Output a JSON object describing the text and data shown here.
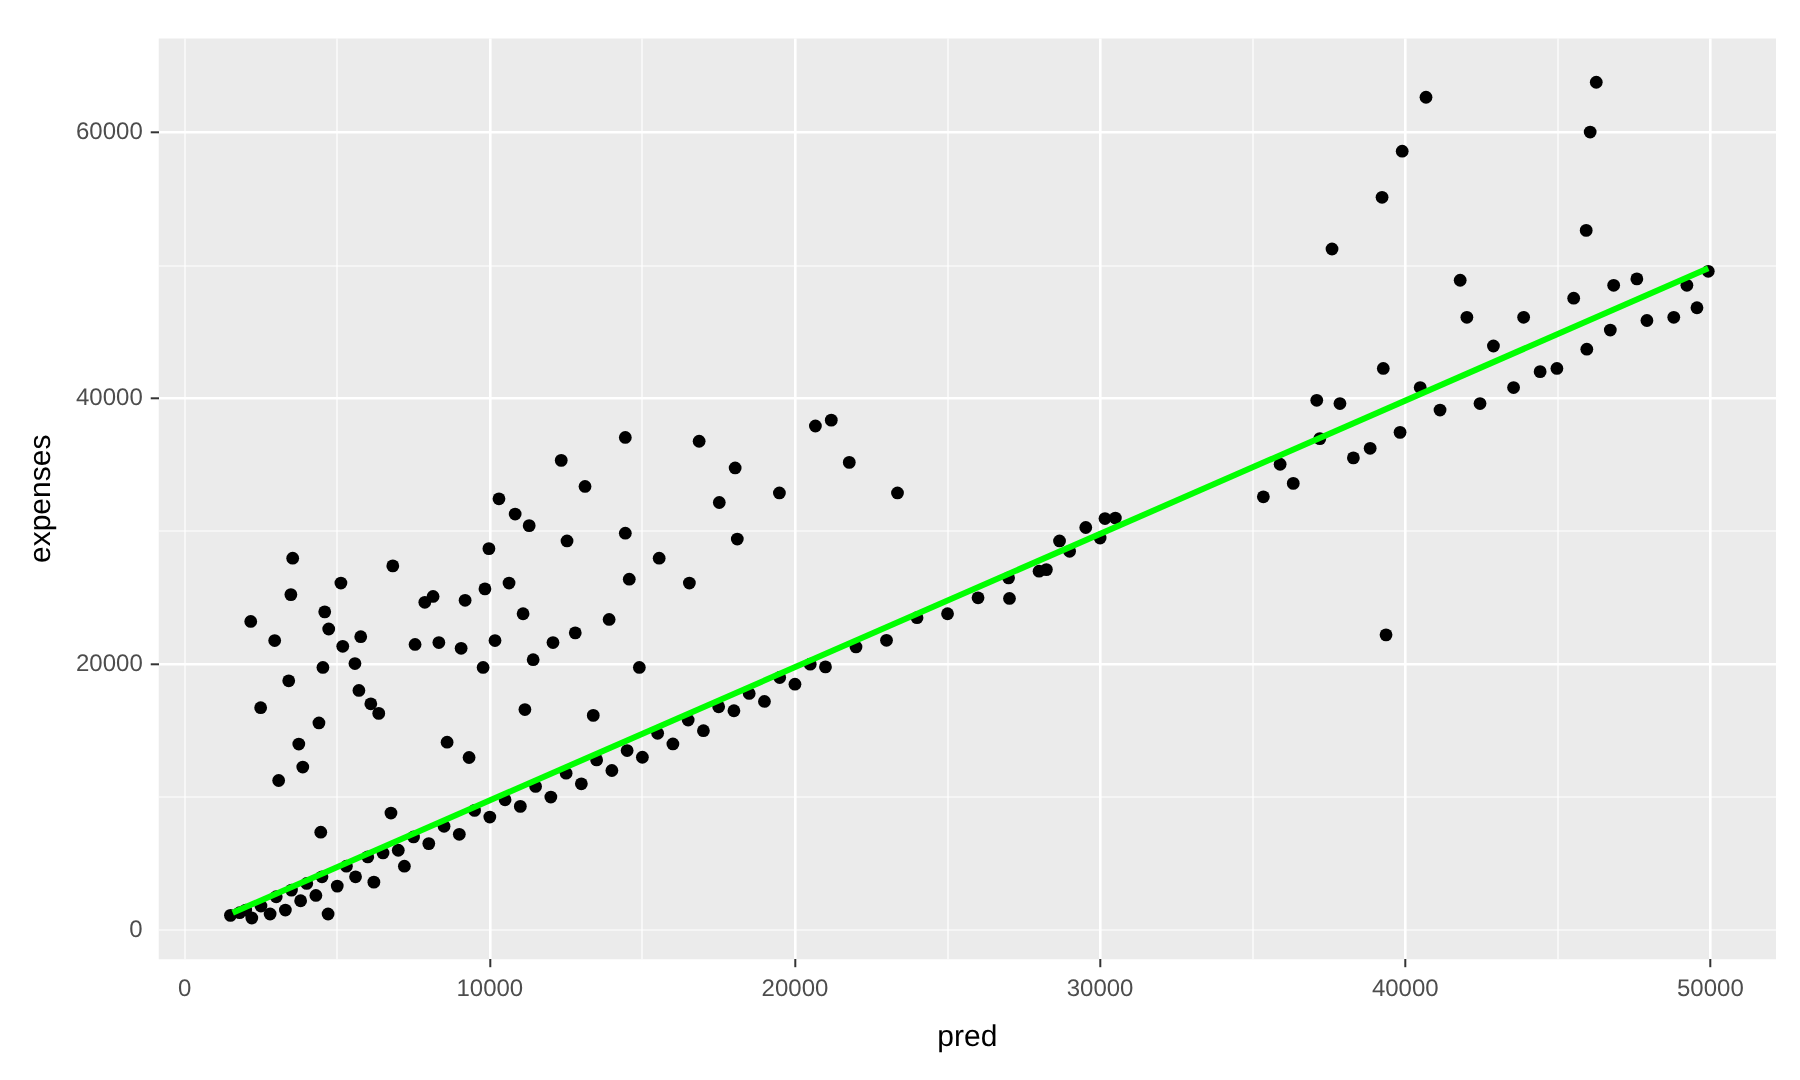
{
  "chart_data": {
    "type": "scatter",
    "xlabel": "pred",
    "ylabel": "expenses",
    "xlim": [
      -850,
      52150
    ],
    "ylim": [
      -2200,
      67100
    ],
    "xticks": [
      0,
      {
        "value": 5000,
        "label": null
      },
      10000,
      {
        "value": 15000,
        "label": null
      },
      20000,
      {
        "value": 25000,
        "label": null
      },
      30000,
      {
        "value": 35000,
        "label": null
      },
      40000,
      {
        "value": 45000,
        "label": null
      },
      50000
    ],
    "yticks": [
      0,
      {
        "value": 10000,
        "label": null
      },
      20000,
      {
        "value": 30000,
        "label": null
      },
      40000,
      {
        "value": 50000,
        "label": null
      },
      60000
    ],
    "grid": true,
    "series": [
      {
        "marker": "circle",
        "color": "#000000",
        "x": [
          2165,
          2490,
          2950,
          3080,
          3410,
          3480,
          3540,
          3740,
          3870,
          4400,
          4460,
          4590,
          4530,
          4720,
          5180,
          5120,
          5580,
          5770,
          5710,
          6100,
          6360,
          6760,
          6820,
          7550,
          7870,
          8140,
          8330,
          8600,
          9190,
          9060,
          9320,
          9840,
          9970,
          9780,
          10170,
          10300,
          10830,
          10630,
          11290,
          11090,
          11420,
          11150,
          12070,
          12340,
          12530,
          12800,
          13120,
          13390,
          13910,
          14440,
          14440,
          14570,
          14900,
          15550,
          16540,
          16860,
          17520,
          18040,
          18110,
          19490,
          20670,
          21190,
          21780,
          23360,
          40680,
          39900,
          39240,
          37600,
          46260,
          46060,
          45930,
          39370,
          41800,
          1500,
          1800,
          2000,
          2200,
          2500,
          2800,
          3000,
          3300,
          3500,
          3800,
          4000,
          4300,
          4700,
          4500,
          5000,
          5300,
          5600,
          6000,
          6200,
          6500,
          7000,
          7200,
          7500,
          8000,
          8500,
          9000,
          9500,
          10000,
          10500,
          11000,
          11500,
          12000,
          12500,
          13000,
          13500,
          14000,
          14500,
          15000,
          15500,
          16000,
          16500,
          17000,
          17500,
          18000,
          18500,
          19000,
          19500,
          20000,
          20500,
          21000,
          22000,
          23000,
          24000,
          25000,
          26000,
          27000,
          28000,
          29000,
          30000,
          30500,
          27030,
          28240,
          28670,
          30160,
          29530,
          35350,
          35900,
          36330,
          37100,
          37200,
          37860,
          38300,
          38850,
          39280,
          39830,
          40490,
          41140,
          42020,
          42450,
          42890,
          43550,
          43880,
          44420,
          44970,
          45520,
          45950,
          46720,
          46830,
          47590,
          47920,
          48800,
          49230,
          49560,
          49930
        ],
        "values": [
          23220,
          16730,
          21780,
          11250,
          18750,
          25240,
          27980,
          13990,
          12260,
          15580,
          7360,
          23940,
          19760,
          22650,
          21350,
          26110,
          20050,
          22070,
          18030,
          17020,
          16300,
          8800,
          27400,
          21490,
          24660,
          25100,
          21630,
          14130,
          24810,
          21200,
          12980,
          25670,
          28700,
          19760,
          21780,
          32450,
          31300,
          26110,
          30430,
          23800,
          20340,
          16590,
          21630,
          35340,
          29280,
          22360,
          33380,
          16150,
          23370,
          29860,
          37070,
          26400,
          19760,
          27980,
          26110,
          36780,
          32170,
          34770,
          29420,
          32890,
          37930,
          38370,
          35190,
          32890,
          62670,
          58610,
          55140,
          51250,
          63800,
          60050,
          52650,
          22210,
          48900,
          1100,
          1300,
          1500,
          900,
          1800,
          1200,
          2500,
          1500,
          3000,
          2200,
          3500,
          2600,
          1200,
          4000,
          3300,
          4800,
          4000,
          5500,
          3600,
          5800,
          6000,
          4800,
          7000,
          6500,
          7800,
          7200,
          9000,
          8500,
          9800,
          9300,
          10800,
          10000,
          11800,
          11000,
          12800,
          12000,
          13500,
          13000,
          14800,
          14000,
          15800,
          15000,
          16800,
          16500,
          17800,
          17200,
          19000,
          18500,
          20000,
          19800,
          21300,
          21800,
          23500,
          23800,
          25000,
          26500,
          27000,
          28500,
          29500,
          31000,
          24950,
          27120,
          29280,
          30960,
          30290,
          32600,
          35050,
          33610,
          39860,
          36980,
          39620,
          35530,
          36250,
          42260,
          37450,
          40820,
          39130,
          46110,
          39620,
          43950,
          40820,
          46110,
          42020,
          42260,
          47550,
          43710,
          45150,
          48520,
          49000,
          45870,
          46110,
          48520,
          46830,
          49570
        ]
      },
      {
        "type": "line",
        "marker": "none",
        "color": "#00ff00",
        "x": [
          1575,
          49930
        ],
        "values": [
          1300,
          49800
        ]
      }
    ]
  }
}
